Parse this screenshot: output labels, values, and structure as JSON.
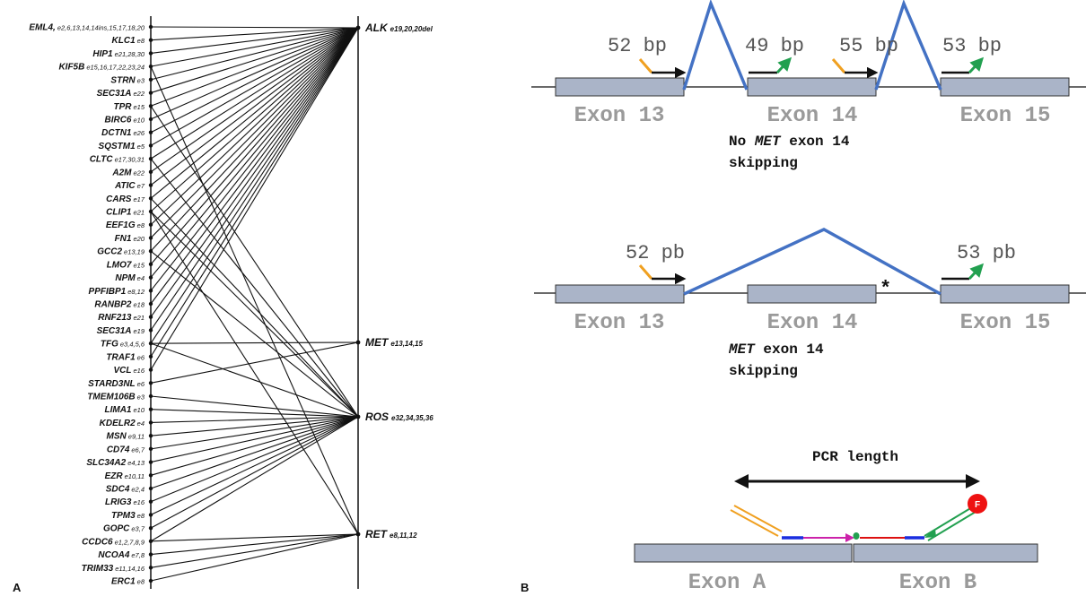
{
  "panel_a": {
    "letter": "A",
    "left_genes": [
      {
        "name": "EML4,",
        "exons": "e2,6,13,14,14ins,15,17,18,20",
        "targets": [
          "alk"
        ]
      },
      {
        "name": "KLC1",
        "exons": "e8",
        "targets": [
          "alk"
        ]
      },
      {
        "name": "HIP1",
        "exons": "e21,28,30",
        "targets": [
          "alk"
        ]
      },
      {
        "name": "KIF5B",
        "exons": "e15,16,17,22,23,24",
        "targets": [
          "alk",
          "ret"
        ]
      },
      {
        "name": "STRN",
        "exons": "e3",
        "targets": [
          "alk"
        ]
      },
      {
        "name": "SEC31A",
        "exons": "e22",
        "targets": [
          "alk"
        ]
      },
      {
        "name": "TPR",
        "exons": "e15",
        "targets": [
          "alk",
          "ros"
        ]
      },
      {
        "name": "BIRC6",
        "exons": "e10",
        "targets": [
          "alk"
        ]
      },
      {
        "name": "DCTN1",
        "exons": "e26",
        "targets": [
          "alk"
        ]
      },
      {
        "name": "SQSTM1",
        "exons": "e5",
        "targets": [
          "alk"
        ]
      },
      {
        "name": "CLTC",
        "exons": "e17,30,31",
        "targets": [
          "alk",
          "ros"
        ]
      },
      {
        "name": "A2M",
        "exons": "e22",
        "targets": [
          "alk"
        ]
      },
      {
        "name": "ATIC",
        "exons": "e7",
        "targets": [
          "alk"
        ]
      },
      {
        "name": "CARS",
        "exons": "e17",
        "targets": [
          "alk",
          "ros"
        ]
      },
      {
        "name": "CLIP1",
        "exons": "e21",
        "targets": [
          "alk",
          "ros",
          "ret"
        ]
      },
      {
        "name": "EEF1G",
        "exons": "e8",
        "targets": [
          "alk"
        ]
      },
      {
        "name": "FN1",
        "exons": "e20",
        "targets": [
          "alk"
        ]
      },
      {
        "name": "GCC2",
        "exons": "e13,19",
        "targets": [
          "alk",
          "ros"
        ]
      },
      {
        "name": "LMO7",
        "exons": "e15",
        "targets": [
          "alk"
        ]
      },
      {
        "name": "NPM",
        "exons": "e4",
        "targets": [
          "alk"
        ]
      },
      {
        "name": "PPFIBP1",
        "exons": "e8,12",
        "targets": [
          "alk"
        ]
      },
      {
        "name": "RANBP2",
        "exons": "e18",
        "targets": [
          "alk"
        ]
      },
      {
        "name": "RNF213",
        "exons": "e21",
        "targets": [
          "alk"
        ]
      },
      {
        "name": "SEC31A",
        "exons": "e19",
        "targets": [
          "alk"
        ]
      },
      {
        "name": "TFG",
        "exons": "e3,4,5,6",
        "targets": [
          "alk",
          "met",
          "ros"
        ]
      },
      {
        "name": "TRAF1",
        "exons": "e6",
        "targets": [
          "alk"
        ]
      },
      {
        "name": "VCL",
        "exons": "e16",
        "targets": [
          "alk"
        ]
      },
      {
        "name": "STARD3NL",
        "exons": "e6",
        "targets": [
          "met"
        ]
      },
      {
        "name": "TMEM106B",
        "exons": "e3",
        "targets": [
          "ros"
        ]
      },
      {
        "name": "LIMA1",
        "exons": "e10",
        "targets": [
          "ros"
        ]
      },
      {
        "name": "KDELR2",
        "exons": "e4",
        "targets": [
          "ros"
        ]
      },
      {
        "name": "MSN",
        "exons": "e9,11",
        "targets": [
          "ros"
        ]
      },
      {
        "name": "CD74",
        "exons": "e6,7",
        "targets": [
          "ros"
        ]
      },
      {
        "name": "SLC34A2",
        "exons": "e4,13",
        "targets": [
          "ros"
        ]
      },
      {
        "name": "EZR",
        "exons": "e10,11",
        "targets": [
          "ros"
        ]
      },
      {
        "name": "SDC4",
        "exons": "e2,4",
        "targets": [
          "ros"
        ]
      },
      {
        "name": "LRIG3",
        "exons": "e16",
        "targets": [
          "ros"
        ]
      },
      {
        "name": "TPM3",
        "exons": "e8",
        "targets": [
          "ros"
        ]
      },
      {
        "name": "GOPC",
        "exons": "e3,7",
        "targets": [
          "ros"
        ]
      },
      {
        "name": "CCDC6",
        "exons": "e1,2,7,8,9",
        "targets": [
          "ros",
          "ret"
        ]
      },
      {
        "name": "NCOA4",
        "exons": "e7,8",
        "targets": [
          "ret"
        ]
      },
      {
        "name": "TRIM33",
        "exons": "e11,14,16",
        "targets": [
          "ret"
        ]
      },
      {
        "name": "ERC1",
        "exons": "e8",
        "targets": [
          "ret"
        ]
      }
    ],
    "partners": {
      "alk": {
        "name": "ALK",
        "exons": "e19,20,20del"
      },
      "met": {
        "name": "MET",
        "exons": "e13,14,15"
      },
      "ros": {
        "name": "ROS",
        "exons": "e32,34,35,36"
      },
      "ret": {
        "name": "RET",
        "exons": "e8,11,12"
      }
    }
  },
  "panel_b": {
    "letter": "B",
    "top": {
      "bp_labels": [
        "52 bp",
        "49 bp",
        "55 bp",
        "53 bp"
      ],
      "exons": [
        "Exon 13",
        "Exon 14",
        "Exon 15"
      ],
      "caption_prefix": "No ",
      "caption_gene": "MET",
      "caption_rest": " exon 14",
      "caption_line2": "skipping"
    },
    "middle": {
      "bp_labels": [
        "52 pb",
        "53 pb"
      ],
      "exons": [
        "Exon 13",
        "Exon 14",
        "Exon 15"
      ],
      "asterisk": "*",
      "caption_gene": "MET",
      "caption_rest": " exon 14",
      "caption_line2": "skipping"
    },
    "bottom": {
      "pcr_label": "PCR length",
      "exons": [
        "Exon A",
        "Exon B"
      ],
      "fluor_label": "F"
    }
  },
  "colors": {
    "splice_line": "#4472c4",
    "forward_primer": "#f0a020",
    "reverse_primer": "#22a050",
    "fluorophore": "#ee1111",
    "exon_box": "#aab4c8"
  }
}
